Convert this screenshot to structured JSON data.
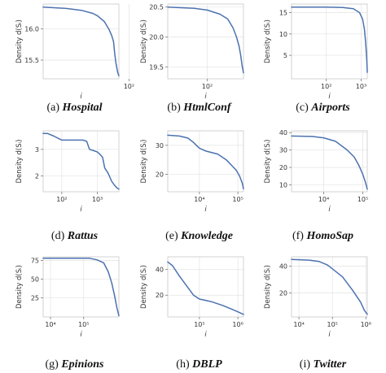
{
  "colors": {
    "series": "#4c72b0"
  },
  "chart_data": [
    {
      "type": "line",
      "caption_letter": "(a)",
      "caption_name": "Hospital",
      "ylabel": "Density d(Sᵢ)",
      "xlabel": "i",
      "xscale": "log",
      "grid": true,
      "xlim": [
        15,
        80
      ],
      "ylim": [
        15.2,
        16.4
      ],
      "xticks": [
        {
          "v": 100,
          "label": "10²"
        }
      ],
      "yticks": [
        {
          "v": 15.5,
          "label": "15.5"
        },
        {
          "v": 16.0,
          "label": "16.0"
        }
      ],
      "x": [
        15,
        25,
        35,
        45,
        50,
        58,
        64,
        68,
        71,
        73,
        75,
        78,
        80
      ],
      "y": [
        16.35,
        16.33,
        16.3,
        16.25,
        16.21,
        16.12,
        16.0,
        15.9,
        15.8,
        15.6,
        15.45,
        15.3,
        15.25
      ]
    },
    {
      "type": "line",
      "caption_letter": "(b)",
      "caption_name": "HtmlConf",
      "ylabel": "Density d(Sᵢ)",
      "xlabel": "i",
      "xscale": "log",
      "grid": true,
      "xlim": [
        12,
        700
      ],
      "ylim": [
        19.3,
        20.55
      ],
      "xticks": [
        {
          "v": 100,
          "label": "10²"
        }
      ],
      "yticks": [
        {
          "v": 19.5,
          "label": "19.5"
        },
        {
          "v": 20.0,
          "label": "20.0"
        },
        {
          "v": 20.5,
          "label": "20.5"
        }
      ],
      "x": [
        12,
        50,
        100,
        200,
        300,
        400,
        480,
        550,
        600,
        650,
        700
      ],
      "y": [
        20.5,
        20.48,
        20.45,
        20.38,
        20.3,
        20.15,
        20.0,
        19.85,
        19.7,
        19.52,
        19.4
      ]
    },
    {
      "type": "line",
      "caption_letter": "(c)",
      "caption_name": "Airports",
      "ylabel": "Density d(Sᵢ)",
      "xlabel": "i",
      "xscale": "log",
      "grid": true,
      "xlim": [
        10,
        1500
      ],
      "ylim": [
        -0.5,
        17
      ],
      "xticks": [
        {
          "v": 100,
          "label": "10²"
        },
        {
          "v": 1000,
          "label": "10³"
        }
      ],
      "yticks": [
        {
          "v": 5,
          "label": "5"
        },
        {
          "v": 10,
          "label": "10"
        },
        {
          "v": 15,
          "label": "15"
        }
      ],
      "x": [
        10,
        100,
        300,
        600,
        900,
        1100,
        1250,
        1350,
        1450,
        1500
      ],
      "y": [
        16.3,
        16.3,
        16.2,
        15.9,
        15.0,
        13.5,
        11.0,
        8.0,
        4.0,
        1.0
      ]
    },
    {
      "type": "line",
      "caption_letter": "(d)",
      "caption_name": "Rattus",
      "ylabel": "Density d(Sᵢ)",
      "xlabel": "i",
      "xscale": "log",
      "grid": true,
      "xlim": [
        30,
        4000
      ],
      "ylim": [
        1.4,
        3.7
      ],
      "xticks": [
        {
          "v": 100,
          "label": "10²"
        },
        {
          "v": 1000,
          "label": "10³"
        }
      ],
      "yticks": [
        {
          "v": 2,
          "label": "2"
        },
        {
          "v": 3,
          "label": "3"
        }
      ],
      "x": [
        30,
        40,
        60,
        100,
        200,
        400,
        500,
        600,
        800,
        1000,
        1200,
        1400,
        1600,
        2000,
        2500,
        3000,
        3500,
        4000
      ],
      "y": [
        3.6,
        3.6,
        3.5,
        3.35,
        3.35,
        3.35,
        3.3,
        3.0,
        2.95,
        2.9,
        2.8,
        2.7,
        2.3,
        2.1,
        1.8,
        1.65,
        1.55,
        1.5
      ]
    },
    {
      "type": "line",
      "caption_letter": "(e)",
      "caption_name": "Knowledge",
      "ylabel": "Density d(Sᵢ)",
      "xlabel": "i",
      "xscale": "log",
      "grid": true,
      "xlim": [
        1500,
        140000
      ],
      "ylim": [
        14,
        35
      ],
      "xticks": [
        {
          "v": 10000,
          "label": "10⁴"
        },
        {
          "v": 100000,
          "label": "10⁵"
        }
      ],
      "yticks": [
        {
          "v": 20,
          "label": "20"
        },
        {
          "v": 30,
          "label": "30"
        }
      ],
      "x": [
        1500,
        3000,
        5000,
        7000,
        10000,
        15000,
        30000,
        50000,
        70000,
        90000,
        110000,
        130000,
        140000
      ],
      "y": [
        33.5,
        33.2,
        32.5,
        31.0,
        29.0,
        28.0,
        27.0,
        25.0,
        23.0,
        21.5,
        19.5,
        17.0,
        15.0
      ]
    },
    {
      "type": "line",
      "caption_letter": "(f)",
      "caption_name": "HomoSap",
      "ylabel": "Density d(Sᵢ)",
      "xlabel": "i",
      "xscale": "log",
      "grid": true,
      "xlim": [
        1500,
        130000
      ],
      "ylim": [
        6,
        41
      ],
      "xticks": [
        {
          "v": 10000,
          "label": "10⁴"
        },
        {
          "v": 100000,
          "label": "10⁵"
        }
      ],
      "yticks": [
        {
          "v": 10,
          "label": "10"
        },
        {
          "v": 20,
          "label": "20"
        },
        {
          "v": 30,
          "label": "30"
        },
        {
          "v": 40,
          "label": "40"
        }
      ],
      "x": [
        1500,
        5000,
        10000,
        20000,
        40000,
        60000,
        80000,
        100000,
        115000,
        125000,
        130000
      ],
      "y": [
        38,
        37.8,
        37,
        35,
        30,
        26,
        21,
        16,
        12,
        9,
        7.5
      ]
    },
    {
      "type": "line",
      "caption_letter": "(g)",
      "caption_name": "Epinions",
      "ylabel": "Density d(Sᵢ)",
      "xlabel": "i",
      "xscale": "log",
      "grid": true,
      "xlim": [
        6000,
        1150000
      ],
      "ylim": [
        -0.5,
        80
      ],
      "xticks": [
        {
          "v": 10000,
          "label": "10⁴"
        },
        {
          "v": 100000,
          "label": "10⁵"
        }
      ],
      "yticks": [
        {
          "v": 25,
          "label": "25"
        },
        {
          "v": 50,
          "label": "50"
        },
        {
          "v": 75,
          "label": "75"
        }
      ],
      "x": [
        6000,
        10000,
        50000,
        150000,
        250000,
        400000,
        550000,
        700000,
        850000,
        1000000,
        1150000
      ],
      "y": [
        78,
        78,
        78,
        78,
        76,
        72,
        60,
        45,
        28,
        12,
        1
      ]
    },
    {
      "type": "line",
      "caption_letter": "(h)",
      "caption_name": "DBLP",
      "ylabel": "Density d(Sᵢ)",
      "xlabel": "i",
      "xscale": "log",
      "grid": true,
      "xlim": [
        15000,
        1400000
      ],
      "ylim": [
        3,
        50
      ],
      "xticks": [
        {
          "v": 100000,
          "label": "10⁵"
        },
        {
          "v": 1000000,
          "label": "10⁶"
        }
      ],
      "yticks": [
        {
          "v": 20,
          "label": "20"
        },
        {
          "v": 40,
          "label": "40"
        }
      ],
      "x": [
        15000,
        20000,
        30000,
        50000,
        70000,
        100000,
        200000,
        400000,
        700000,
        1000000,
        1400000
      ],
      "y": [
        46,
        43,
        35,
        26,
        20,
        17,
        15,
        12,
        9,
        7,
        5
      ]
    },
    {
      "type": "line",
      "caption_letter": "(i)",
      "caption_name": "Twitter",
      "ylabel": "Density d(Sᵢ)",
      "xlabel": "i",
      "xscale": "log",
      "grid": true,
      "xlim": [
        6000,
        1100000
      ],
      "ylim": [
        2,
        47
      ],
      "xticks": [
        {
          "v": 10000,
          "label": "10⁴"
        },
        {
          "v": 100000,
          "label": "10⁵"
        },
        {
          "v": 1000000,
          "label": "10⁶"
        }
      ],
      "yticks": [
        {
          "v": 20,
          "label": "20"
        },
        {
          "v": 40,
          "label": "40"
        }
      ],
      "x": [
        6000,
        20000,
        40000,
        70000,
        100000,
        200000,
        400000,
        700000,
        900000,
        1100000
      ],
      "y": [
        45,
        44.5,
        43.5,
        41,
        38,
        32,
        22,
        13,
        7,
        4
      ]
    }
  ]
}
